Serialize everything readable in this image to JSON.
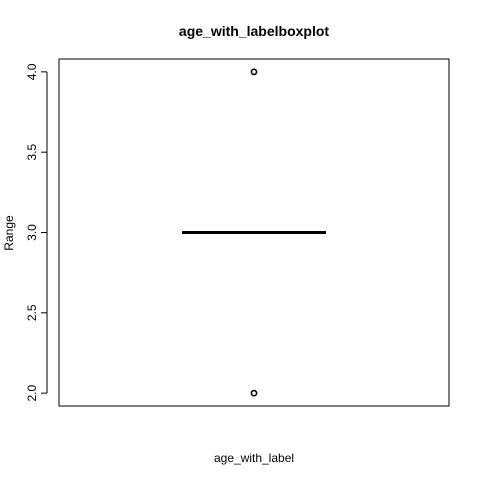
{
  "chart_data": {
    "type": "boxplot",
    "title": "age_with_labelboxplot",
    "xlabel": "age_with_label",
    "ylabel": "Range",
    "ylim": [
      1.92,
      4.08
    ],
    "y_ticks": [
      "2.0",
      "2.5",
      "3.0",
      "3.5",
      "4.0"
    ],
    "grid": false,
    "series": [
      {
        "min": 3.0,
        "q1": 3.0,
        "median": 3.0,
        "q3": 3.0,
        "max": 3.0,
        "outliers": [
          2.0,
          4.0
        ]
      }
    ]
  },
  "colors": {
    "background": "#ffffff",
    "ink": "#000000"
  }
}
